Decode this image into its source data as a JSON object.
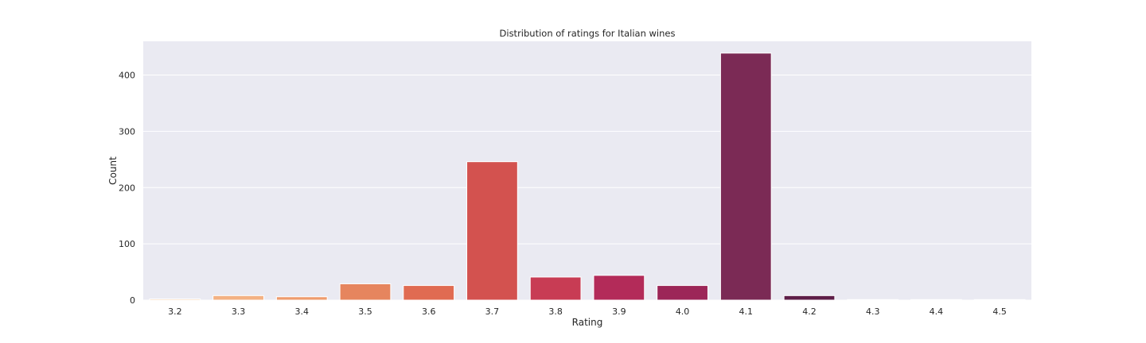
{
  "chart_data": {
    "type": "bar",
    "title": "Distribution of ratings for Italian wines",
    "xlabel": "Rating",
    "ylabel": "Count",
    "categories": [
      "3.2",
      "3.3",
      "3.4",
      "3.5",
      "3.6",
      "3.7",
      "3.8",
      "3.9",
      "4.0",
      "4.1",
      "4.2",
      "4.3",
      "4.4",
      "4.5"
    ],
    "values": [
      2,
      8,
      6,
      29,
      26,
      246,
      41,
      44,
      26,
      439,
      8,
      1,
      1,
      1
    ],
    "ylim": [
      0,
      460
    ],
    "yticks": [
      0,
      100,
      200,
      300,
      400
    ],
    "grid": true,
    "legend": "none",
    "colors": [
      "#f6c99c",
      "#f3b183",
      "#ef9c6e",
      "#e6855e",
      "#e06b52",
      "#d3524f",
      "#c83c54",
      "#b32b59",
      "#9c2658",
      "#7b2a55",
      "#5e1e48",
      "#4a1a3d",
      "#3a1533",
      "#2c102a"
    ],
    "plot_background": "#eaeaf2",
    "grid_color": "#ffffff"
  }
}
